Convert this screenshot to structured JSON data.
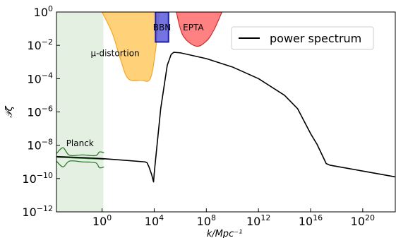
{
  "chart_data": {
    "type": "line",
    "x_scale": "log",
    "y_scale": "log",
    "xlim_log10": [
      -3.5,
      22.5
    ],
    "ylim_log10": [
      -12,
      0
    ],
    "xlabel": "k/Mpc⁻¹",
    "ylabel": "𝒫ζ",
    "legend_placement": "top-right",
    "x_ticks": [
      {
        "exp": 0,
        "label_base": "10",
        "label_exp": "0"
      },
      {
        "exp": 4,
        "label_base": "10",
        "label_exp": "4"
      },
      {
        "exp": 8,
        "label_base": "10",
        "label_exp": "8"
      },
      {
        "exp": 12,
        "label_base": "10",
        "label_exp": "12"
      },
      {
        "exp": 16,
        "label_base": "10",
        "label_exp": "16"
      },
      {
        "exp": 20,
        "label_base": "10",
        "label_exp": "20"
      }
    ],
    "y_ticks": [
      {
        "exp": 0,
        "label_base": "10",
        "label_exp": "0"
      },
      {
        "exp": -2,
        "label_base": "10",
        "label_exp": "−2"
      },
      {
        "exp": -4,
        "label_base": "10",
        "label_exp": "−4"
      },
      {
        "exp": -6,
        "label_base": "10",
        "label_exp": "−6"
      },
      {
        "exp": -8,
        "label_base": "10",
        "label_exp": "−8"
      },
      {
        "exp": -10,
        "label_base": "10",
        "label_exp": "−10"
      },
      {
        "exp": -12,
        "label_base": "10",
        "label_exp": "−12"
      }
    ],
    "series": [
      {
        "name": "power spectrum",
        "color": "#000000",
        "points_log10": [
          [
            -3.5,
            -8.68
          ],
          [
            -1.5,
            -8.74
          ],
          [
            0,
            -8.8
          ],
          [
            2,
            -8.92
          ],
          [
            3.3,
            -9.0
          ],
          [
            3.45,
            -9.05
          ],
          [
            3.6,
            -9.3
          ],
          [
            3.8,
            -9.75
          ],
          [
            3.95,
            -10.2
          ],
          [
            4.0,
            -9.7
          ],
          [
            4.1,
            -8.9
          ],
          [
            4.5,
            -5.8
          ],
          [
            5.0,
            -3.2
          ],
          [
            5.3,
            -2.55
          ],
          [
            5.5,
            -2.42
          ],
          [
            6,
            -2.45
          ],
          [
            8,
            -2.8
          ],
          [
            10,
            -3.3
          ],
          [
            12,
            -4.0
          ],
          [
            14,
            -5.0
          ],
          [
            15,
            -5.8
          ],
          [
            16,
            -7.3
          ],
          [
            16.5,
            -7.95
          ],
          [
            17.2,
            -9.1
          ],
          [
            17.5,
            -9.2
          ],
          [
            20,
            -9.55
          ],
          [
            22.5,
            -9.9
          ]
        ]
      }
    ],
    "regions": [
      {
        "label": "Planck",
        "color": "#d8ead6",
        "opacity": 0.7,
        "k_range_log10": [
          -3.5,
          0.1
        ],
        "label_at_log10": [
          -1.7,
          -7.9
        ]
      },
      {
        "label": "μ-distortion",
        "color": "#ffbf40",
        "opacity": 0.7,
        "edge_color": "#f5a623",
        "boundary_log10": [
          [
            0,
            0
          ],
          [
            0.8,
            -1.3
          ],
          [
            1.4,
            -2.8
          ],
          [
            2.0,
            -4.0
          ],
          [
            3.0,
            -4.1
          ],
          [
            3.7,
            -4.0
          ],
          [
            4.1,
            -2.3
          ],
          [
            4.4,
            0
          ]
        ],
        "label_at_log10": [
          1.0,
          -2.5
        ]
      },
      {
        "label": "BBN",
        "color": "#5b5bdc",
        "opacity": 0.85,
        "edge_color": "#1e1ea8",
        "k_range_log10": [
          4.1,
          5.1
        ],
        "y_range_log10": [
          -1.8,
          0
        ],
        "label_at_log10": [
          4.6,
          -0.95
        ]
      },
      {
        "label": "EPTA",
        "color": "#ff6b6b",
        "opacity": 0.85,
        "edge_color": "#d62828",
        "boundary_log10": [
          [
            5.7,
            0
          ],
          [
            6.2,
            -1.4
          ],
          [
            7.2,
            -2.05
          ],
          [
            8.0,
            -1.75
          ],
          [
            8.6,
            -1.05
          ],
          [
            9.2,
            0
          ]
        ],
        "label_at_log10": [
          7.0,
          -0.95
        ]
      }
    ],
    "planck_curves": {
      "color": "#2a7a2a",
      "upper_log10": [
        [
          -3.5,
          -8.5
        ],
        [
          -3.0,
          -8.15
        ],
        [
          -2.5,
          -8.6
        ],
        [
          -1.5,
          -8.58
        ],
        [
          -0.5,
          -8.62
        ],
        [
          -0.2,
          -8.4
        ],
        [
          0.15,
          -8.45
        ]
      ],
      "lower_log10": [
        [
          -3.5,
          -8.95
        ],
        [
          -3.0,
          -9.3
        ],
        [
          -2.5,
          -8.95
        ],
        [
          -1.5,
          -9.0
        ],
        [
          -0.5,
          -9.05
        ],
        [
          -0.2,
          -9.35
        ],
        [
          0.15,
          -9.3
        ]
      ],
      "middle_log10": [
        [
          -3.5,
          -8.72
        ],
        [
          0.15,
          -8.84
        ]
      ]
    }
  }
}
